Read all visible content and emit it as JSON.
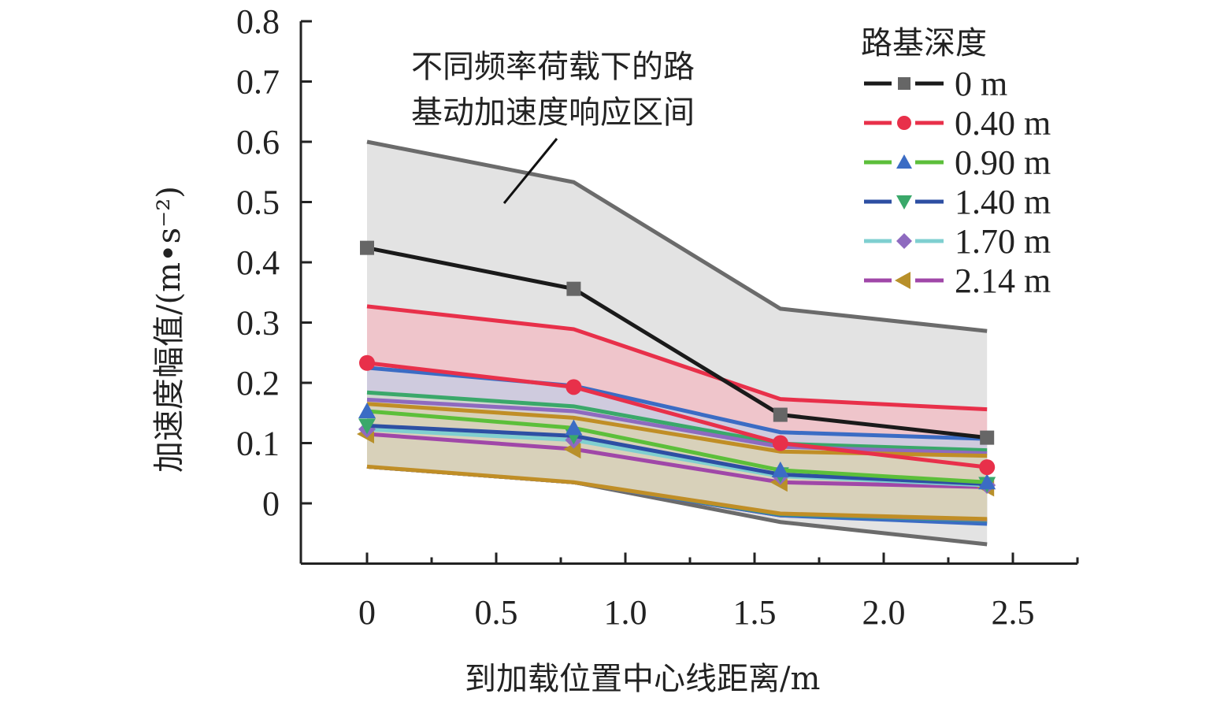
{
  "chart_data": {
    "type": "line",
    "title": "",
    "xlabel": "到加载位置中心线距离/m",
    "ylabel": "加速度幅值/(m•s⁻²)",
    "xlim": [
      -0.25,
      2.75
    ],
    "ylim": [
      -0.1,
      0.8
    ],
    "xticks": [
      0,
      0.5,
      1.0,
      1.5,
      2.0,
      2.5
    ],
    "xtick_labels": [
      "0",
      "0.5",
      "1.0",
      "1.5",
      "2.0",
      "2.5"
    ],
    "yticks": [
      0,
      0.1,
      0.2,
      0.3,
      0.4,
      0.5,
      0.6,
      0.7,
      0.8
    ],
    "ytick_labels": [
      "0",
      "0.1",
      "0.2",
      "0.3",
      "0.4",
      "0.5",
      "0.6",
      "0.7",
      "0.8"
    ],
    "grid": false,
    "legend": {
      "title": "路基深度",
      "position": "top-right"
    },
    "annotation": {
      "lines": [
        "不同频率荷载下的路",
        "基动加速度响应区间"
      ]
    },
    "x": [
      0,
      0.8,
      1.6,
      2.4
    ],
    "series": [
      {
        "name": "0 m",
        "line_color": "#1a1a1a",
        "marker": "square",
        "marker_color": "#666666",
        "band_color": "#e3e3e3",
        "band_edge": "#6b6b6b",
        "values": [
          0.424,
          0.356,
          0.147,
          0.109
        ],
        "band_upper": [
          0.6,
          0.533,
          0.323,
          0.286
        ],
        "band_lower": [
          0.061,
          0.035,
          -0.031,
          -0.068
        ]
      },
      {
        "name": "0.40 m",
        "line_color": "#e8304a",
        "marker": "circle",
        "marker_color": "#e8304a",
        "band_color": "#f1bfc7",
        "band_edge": "#e8304a",
        "values": [
          0.233,
          0.193,
          0.1,
          0.06
        ],
        "band_upper": [
          0.327,
          0.289,
          0.173,
          0.156
        ],
        "band_lower": [
          0.061,
          0.035,
          -0.02,
          -0.03
        ]
      },
      {
        "name": "0.90 m",
        "line_color": "#5cbf3a",
        "marker": "triangle-up",
        "marker_color": "#3b6cc4",
        "band_color": "#c9cbe2",
        "band_edge": "#3b6cc4",
        "values": [
          0.153,
          0.125,
          0.055,
          0.035
        ],
        "band_upper": [
          0.225,
          0.195,
          0.118,
          0.107
        ],
        "band_lower": [
          0.061,
          0.035,
          -0.02,
          -0.034
        ]
      },
      {
        "name": "1.40 m",
        "line_color": "#2d4fa3",
        "marker": "triangle-down",
        "marker_color": "#3aa86a",
        "band_color": "#cfd8cc",
        "band_edge": "#3aa86a",
        "values": [
          0.129,
          0.112,
          0.048,
          0.032
        ],
        "band_upper": [
          0.184,
          0.161,
          0.099,
          0.088
        ],
        "band_lower": [
          0.061,
          0.035,
          -0.018,
          -0.028
        ]
      },
      {
        "name": "1.70 m",
        "line_color": "#7fcfd0",
        "marker": "diamond",
        "marker_color": "#8e6abf",
        "band_color": "#d6d0cf",
        "band_edge": "#8e6abf",
        "values": [
          0.123,
          0.105,
          0.045,
          0.03
        ],
        "band_upper": [
          0.172,
          0.153,
          0.094,
          0.083
        ],
        "band_lower": [
          0.061,
          0.035,
          -0.017,
          -0.027
        ]
      },
      {
        "name": "2.14 m",
        "line_color": "#a047a8",
        "marker": "triangle-left",
        "marker_color": "#b8902a",
        "band_color": "#d8d1b6",
        "band_edge": "#c08e26",
        "values": [
          0.115,
          0.09,
          0.035,
          0.027
        ],
        "band_upper": [
          0.165,
          0.142,
          0.086,
          0.079
        ],
        "band_lower": [
          0.061,
          0.035,
          -0.017,
          -0.026
        ]
      }
    ]
  }
}
